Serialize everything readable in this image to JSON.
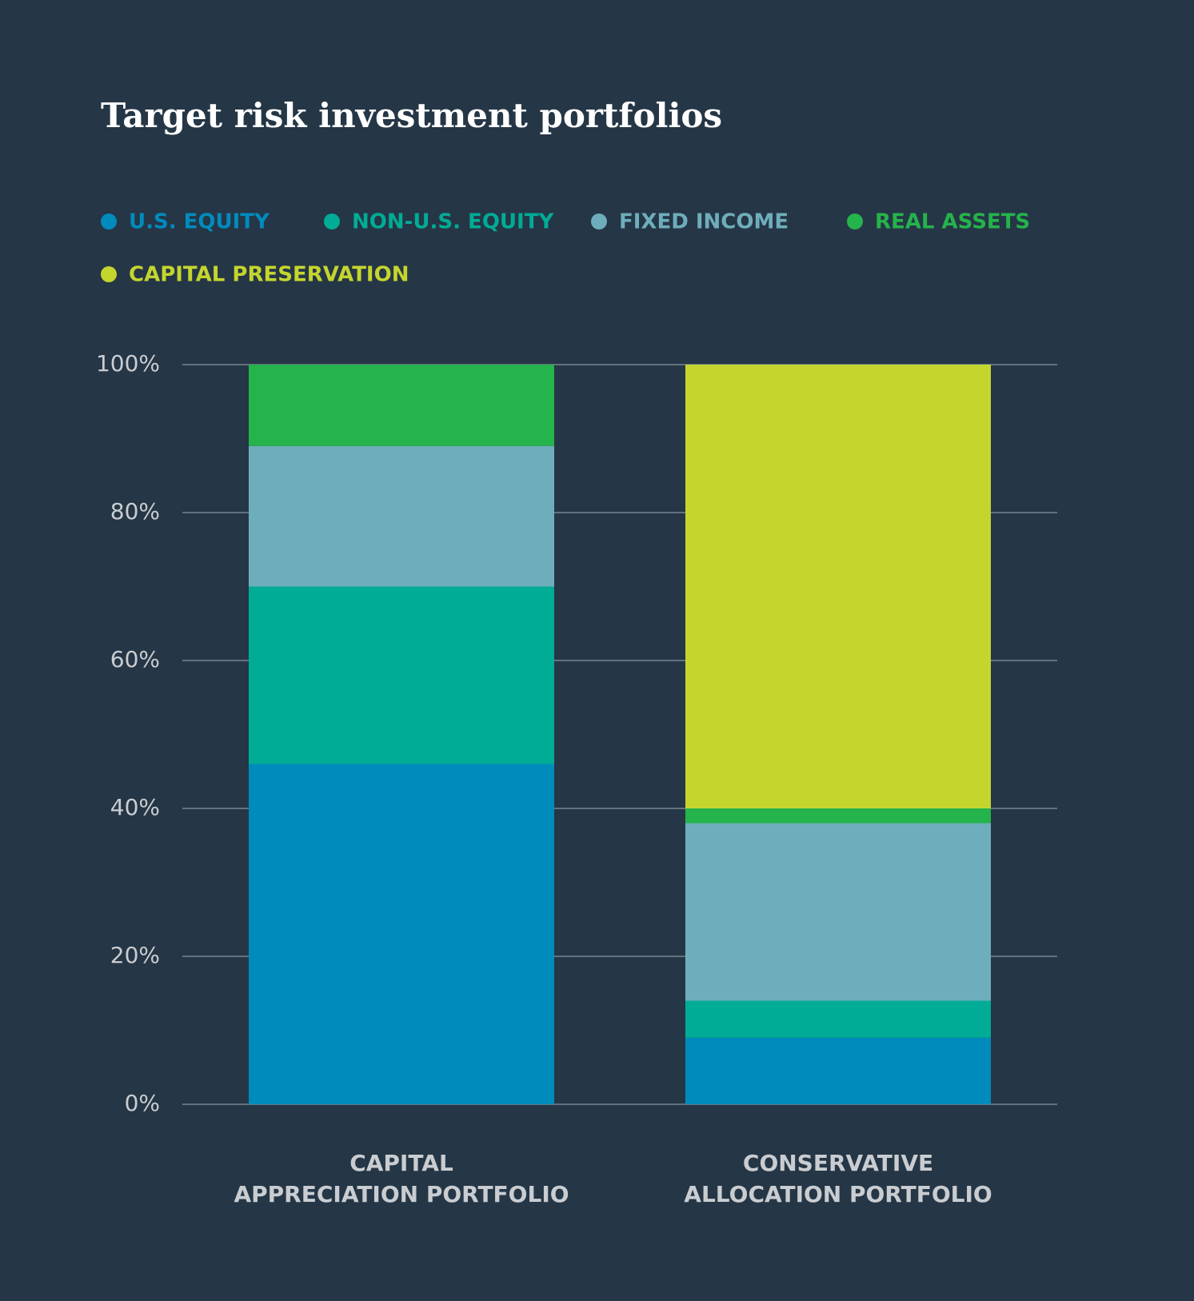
{
  "chart_data": {
    "type": "stacked_bar",
    "title": "Target risk investment portfolios",
    "categories": [
      [
        "CAPITAL",
        "APPRECIATION PORTFOLIO"
      ],
      [
        "CONSERVATIVE",
        "ALLOCATION PORTFOLIO"
      ]
    ],
    "series": [
      {
        "name": "U.S. EQUITY",
        "color": "#008bbd",
        "values": [
          46,
          9
        ]
      },
      {
        "name": "NON-U.S. EQUITY",
        "color": "#00ac95",
        "values": [
          24,
          5
        ]
      },
      {
        "name": "FIXED INCOME",
        "color": "#6eaebc",
        "values": [
          19,
          24
        ]
      },
      {
        "name": "REAL ASSETS",
        "color": "#25b34b",
        "values": [
          11,
          2
        ]
      },
      {
        "name": "CAPITAL PRESERVATION",
        "color": "#c4d52e",
        "values": [
          0,
          60
        ]
      }
    ],
    "ylim": [
      0,
      100
    ],
    "yticks": [
      {
        "value": 0,
        "label": "0%"
      },
      {
        "value": 20,
        "label": "20%"
      },
      {
        "value": 40,
        "label": "40%"
      },
      {
        "value": 60,
        "label": "60%"
      },
      {
        "value": 80,
        "label": "80%"
      },
      {
        "value": 100,
        "label": "100%"
      }
    ],
    "grid": true
  }
}
